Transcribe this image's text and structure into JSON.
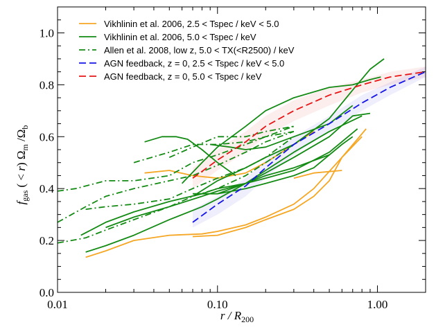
{
  "chart_data": {
    "type": "line",
    "xscale": "log",
    "xlim": [
      0.01,
      2.0
    ],
    "ylim": [
      0.0,
      1.1
    ],
    "xlabel": "r / R200",
    "ylabel": "fgas ( < r) Ωm / Ωb",
    "x_ticks": [
      {
        "value": 0.01,
        "label": "0.01"
      },
      {
        "value": 0.1,
        "label": "0.10"
      },
      {
        "value": 1.0,
        "label": "1.00"
      }
    ],
    "y_ticks": [
      {
        "value": 0.0,
        "label": "0.0"
      },
      {
        "value": 0.2,
        "label": "0.2"
      },
      {
        "value": 0.4,
        "label": "0.4"
      },
      {
        "value": 0.6,
        "label": "0.6"
      },
      {
        "value": 0.8,
        "label": "0.8"
      },
      {
        "value": 1.0,
        "label": "1.0"
      }
    ],
    "grid": false,
    "legend_position": "top-left",
    "colors": {
      "orange": "#f5a623",
      "green": "#138a13",
      "blue": "#1414e6",
      "red": "#e81414"
    },
    "legend": [
      {
        "key": "vik_low",
        "label": "Vikhlinin et al. 2006, 2.5 < Tspec / keV < 5.0",
        "color": "#f5a623",
        "dash": "solid"
      },
      {
        "key": "vik_high",
        "label": "Vikhlinin et al. 2006, 5.0 < Tspec / keV",
        "color": "#138a13",
        "dash": "solid"
      },
      {
        "key": "allen",
        "label": "Allen et al. 2008, low z, 5.0 < TX(<R2500) / keV",
        "color": "#138a13",
        "dash": "dashdot"
      },
      {
        "key": "agn_low",
        "label": "AGN feedback, z = 0, 2.5 < Tspec / keV < 5.0",
        "color": "#1414e6",
        "dash": "dashed"
      },
      {
        "key": "agn_high",
        "label": "AGN feedback, z = 0, 5.0 < Tspec / keV",
        "color": "#e81414",
        "dash": "dashed"
      }
    ],
    "bands": [
      {
        "series": "agn_low",
        "color": "#1414e6",
        "x": [
          0.07,
          0.1,
          0.15,
          0.2,
          0.3,
          0.5,
          0.8,
          1.2,
          2.0
        ],
        "lower": [
          0.25,
          0.3,
          0.37,
          0.44,
          0.53,
          0.62,
          0.7,
          0.76,
          0.83
        ],
        "upper": [
          0.32,
          0.37,
          0.44,
          0.51,
          0.6,
          0.68,
          0.76,
          0.81,
          0.87
        ]
      },
      {
        "series": "agn_high",
        "color": "#e81414",
        "x": [
          0.07,
          0.1,
          0.15,
          0.2,
          0.3,
          0.5,
          0.8,
          1.2,
          2.0
        ],
        "lower": [
          0.4,
          0.47,
          0.54,
          0.6,
          0.66,
          0.72,
          0.77,
          0.8,
          0.83
        ],
        "upper": [
          0.48,
          0.55,
          0.62,
          0.68,
          0.74,
          0.79,
          0.82,
          0.85,
          0.87
        ]
      }
    ],
    "series": [
      {
        "key": "vik_low",
        "x": [
          0.015,
          0.02,
          0.03,
          0.05,
          0.08,
          0.1,
          0.15,
          0.2,
          0.3,
          0.4,
          0.6,
          0.85
        ],
        "y": [
          0.135,
          0.16,
          0.2,
          0.22,
          0.225,
          0.235,
          0.26,
          0.29,
          0.34,
          0.4,
          0.52,
          0.63
        ]
      },
      {
        "key": "vik_low",
        "x": [
          0.07,
          0.1,
          0.15,
          0.2,
          0.3,
          0.4,
          0.5,
          0.6,
          0.8
        ],
        "y": [
          0.215,
          0.22,
          0.25,
          0.28,
          0.32,
          0.37,
          0.43,
          0.52,
          0.6
        ]
      },
      {
        "key": "vik_low",
        "x": [
          0.035,
          0.05,
          0.07,
          0.1,
          0.15,
          0.2,
          0.3,
          0.4
        ],
        "y": [
          0.46,
          0.47,
          0.45,
          0.44,
          0.46,
          0.5,
          0.57,
          0.62
        ]
      },
      {
        "key": "vik_low",
        "x": [
          0.3,
          0.4,
          0.6
        ],
        "y": [
          0.44,
          0.46,
          0.47
        ]
      },
      {
        "key": "vik_high",
        "x": [
          0.015,
          0.02,
          0.03,
          0.05,
          0.08,
          0.1,
          0.15,
          0.2,
          0.3,
          0.5,
          0.8
        ],
        "y": [
          0.155,
          0.18,
          0.22,
          0.28,
          0.33,
          0.36,
          0.42,
          0.47,
          0.54,
          0.62,
          0.68
        ]
      },
      {
        "key": "vik_high",
        "x": [
          0.014,
          0.02,
          0.03,
          0.05,
          0.08,
          0.1,
          0.15,
          0.2,
          0.3,
          0.5,
          0.75
        ],
        "y": [
          0.22,
          0.27,
          0.31,
          0.35,
          0.38,
          0.4,
          0.42,
          0.44,
          0.47,
          0.54,
          0.63
        ]
      },
      {
        "key": "vik_high",
        "x": [
          0.02,
          0.03,
          0.05,
          0.08,
          0.1,
          0.15,
          0.2,
          0.3,
          0.5
        ],
        "y": [
          0.25,
          0.29,
          0.33,
          0.37,
          0.39,
          0.42,
          0.45,
          0.48,
          0.53
        ]
      },
      {
        "key": "vik_high",
        "x": [
          0.035,
          0.045,
          0.055,
          0.065,
          0.08,
          0.1,
          0.13
        ],
        "y": [
          0.58,
          0.6,
          0.6,
          0.59,
          0.55,
          0.5,
          0.45
        ]
      },
      {
        "key": "vik_high",
        "x": [
          0.06,
          0.08,
          0.1,
          0.15,
          0.2,
          0.3,
          0.5,
          0.7,
          0.9,
          1.05
        ],
        "y": [
          0.42,
          0.5,
          0.56,
          0.64,
          0.7,
          0.75,
          0.79,
          0.8,
          0.82,
          0.83
        ]
      },
      {
        "key": "vik_high",
        "x": [
          0.07,
          0.1,
          0.15,
          0.2,
          0.3,
          0.5,
          0.7,
          0.9,
          1.1
        ],
        "y": [
          0.37,
          0.43,
          0.48,
          0.52,
          0.57,
          0.67,
          0.78,
          0.86,
          0.9
        ]
      },
      {
        "key": "vik_high",
        "x": [
          0.1,
          0.15,
          0.2,
          0.3,
          0.5,
          0.7,
          0.9
        ],
        "y": [
          0.38,
          0.42,
          0.46,
          0.52,
          0.6,
          0.68,
          0.69
        ]
      },
      {
        "key": "vik_high",
        "x": [
          0.07,
          0.1,
          0.15,
          0.2,
          0.3,
          0.4,
          0.6,
          0.7
        ],
        "y": [
          0.38,
          0.38,
          0.4,
          0.42,
          0.45,
          0.48,
          0.57,
          0.6
        ]
      },
      {
        "key": "vik_high",
        "x": [
          0.09,
          0.12,
          0.15,
          0.2,
          0.3,
          0.5,
          0.7
        ],
        "y": [
          0.57,
          0.56,
          0.55,
          0.56,
          0.6,
          0.65,
          0.72
        ]
      },
      {
        "key": "allen",
        "x": [
          0.01,
          0.013,
          0.02,
          0.03,
          0.05,
          0.07,
          0.1,
          0.15,
          0.2,
          0.3
        ],
        "y": [
          0.39,
          0.4,
          0.43,
          0.43,
          0.45,
          0.5,
          0.53,
          0.57,
          0.6,
          0.64
        ]
      },
      {
        "key": "allen",
        "x": [
          0.01,
          0.015,
          0.02,
          0.03,
          0.05,
          0.07,
          0.1,
          0.15,
          0.2,
          0.3
        ],
        "y": [
          0.27,
          0.33,
          0.37,
          0.4,
          0.43,
          0.45,
          0.49,
          0.54,
          0.58,
          0.62
        ]
      },
      {
        "key": "allen",
        "x": [
          0.01,
          0.015,
          0.02,
          0.03,
          0.05,
          0.07,
          0.1,
          0.15,
          0.2,
          0.3
        ],
        "y": [
          0.19,
          0.21,
          0.24,
          0.28,
          0.33,
          0.37,
          0.4,
          0.45,
          0.5,
          0.57
        ]
      },
      {
        "key": "allen",
        "x": [
          0.015,
          0.02,
          0.03,
          0.05,
          0.07,
          0.1,
          0.15,
          0.2,
          0.3
        ],
        "y": [
          0.32,
          0.33,
          0.34,
          0.36,
          0.4,
          0.44,
          0.48,
          0.52,
          0.6
        ]
      },
      {
        "key": "allen",
        "x": [
          0.03,
          0.05,
          0.07,
          0.1,
          0.15,
          0.2,
          0.3
        ],
        "y": [
          0.5,
          0.54,
          0.57,
          0.57,
          0.58,
          0.6,
          0.62
        ]
      },
      {
        "key": "allen",
        "x": [
          0.05,
          0.07,
          0.1,
          0.15,
          0.2,
          0.3
        ],
        "y": [
          0.52,
          0.56,
          0.6,
          0.6,
          0.62,
          0.64
        ]
      },
      {
        "key": "agn_low",
        "x": [
          0.07,
          0.1,
          0.15,
          0.2,
          0.3,
          0.5,
          0.8,
          1.2,
          2.0
        ],
        "y": [
          0.27,
          0.34,
          0.41,
          0.48,
          0.57,
          0.65,
          0.73,
          0.79,
          0.85
        ]
      },
      {
        "key": "agn_high",
        "x": [
          0.07,
          0.1,
          0.15,
          0.2,
          0.3,
          0.5,
          0.8,
          1.2,
          2.0
        ],
        "y": [
          0.44,
          0.51,
          0.58,
          0.64,
          0.7,
          0.76,
          0.8,
          0.83,
          0.85
        ]
      }
    ]
  }
}
